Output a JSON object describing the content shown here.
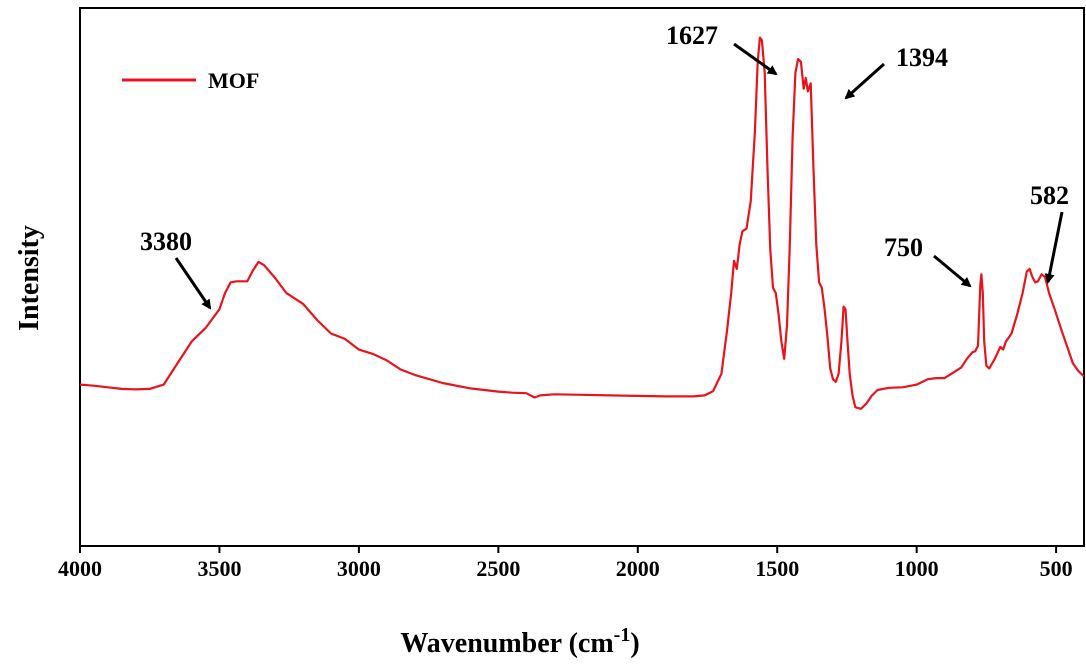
{
  "chart_data": {
    "type": "line",
    "title": "",
    "xlabel": "Wavenumber (cm",
    "xlabel_superscript": "-1",
    "xlabel_suffix": ")",
    "ylabel": "Intensity",
    "xlim": [
      4000,
      400
    ],
    "x_reversed": true,
    "x_ticks": [
      4000,
      3500,
      3000,
      2500,
      2000,
      1500,
      1000,
      500
    ],
    "y_ticks_shown": false,
    "grid": false,
    "legend_placement": "top-left",
    "series": [
      {
        "name": "MOF",
        "color": "#e8141b",
        "points": [
          [
            4000,
            0.3
          ],
          [
            3950,
            0.298
          ],
          [
            3900,
            0.295
          ],
          [
            3850,
            0.292
          ],
          [
            3800,
            0.291
          ],
          [
            3750,
            0.292
          ],
          [
            3700,
            0.3
          ],
          [
            3650,
            0.34
          ],
          [
            3600,
            0.38
          ],
          [
            3550,
            0.405
          ],
          [
            3500,
            0.44
          ],
          [
            3480,
            0.47
          ],
          [
            3460,
            0.49
          ],
          [
            3440,
            0.492
          ],
          [
            3420,
            0.492
          ],
          [
            3400,
            0.492
          ],
          [
            3380,
            0.512
          ],
          [
            3360,
            0.528
          ],
          [
            3340,
            0.522
          ],
          [
            3300,
            0.498
          ],
          [
            3260,
            0.47
          ],
          [
            3200,
            0.45
          ],
          [
            3150,
            0.42
          ],
          [
            3100,
            0.395
          ],
          [
            3050,
            0.385
          ],
          [
            3000,
            0.365
          ],
          [
            2950,
            0.357
          ],
          [
            2900,
            0.345
          ],
          [
            2850,
            0.328
          ],
          [
            2800,
            0.318
          ],
          [
            2700,
            0.303
          ],
          [
            2600,
            0.293
          ],
          [
            2500,
            0.287
          ],
          [
            2450,
            0.285
          ],
          [
            2400,
            0.284
          ],
          [
            2370,
            0.276
          ],
          [
            2350,
            0.28
          ],
          [
            2300,
            0.282
          ],
          [
            2200,
            0.281
          ],
          [
            2100,
            0.28
          ],
          [
            2000,
            0.279
          ],
          [
            1900,
            0.278
          ],
          [
            1800,
            0.278
          ],
          [
            1760,
            0.28
          ],
          [
            1730,
            0.288
          ],
          [
            1700,
            0.32
          ],
          [
            1680,
            0.4
          ],
          [
            1665,
            0.47
          ],
          [
            1655,
            0.53
          ],
          [
            1645,
            0.515
          ],
          [
            1635,
            0.56
          ],
          [
            1625,
            0.585
          ],
          [
            1610,
            0.59
          ],
          [
            1595,
            0.64
          ],
          [
            1580,
            0.77
          ],
          [
            1570,
            0.9
          ],
          [
            1562,
            0.945
          ],
          [
            1555,
            0.94
          ],
          [
            1545,
            0.88
          ],
          [
            1535,
            0.7
          ],
          [
            1525,
            0.55
          ],
          [
            1515,
            0.48
          ],
          [
            1505,
            0.47
          ],
          [
            1495,
            0.43
          ],
          [
            1485,
            0.38
          ],
          [
            1475,
            0.348
          ],
          [
            1465,
            0.41
          ],
          [
            1455,
            0.56
          ],
          [
            1445,
            0.76
          ],
          [
            1435,
            0.88
          ],
          [
            1425,
            0.905
          ],
          [
            1415,
            0.9
          ],
          [
            1405,
            0.85
          ],
          [
            1398,
            0.87
          ],
          [
            1390,
            0.845
          ],
          [
            1380,
            0.86
          ],
          [
            1370,
            0.7
          ],
          [
            1360,
            0.56
          ],
          [
            1350,
            0.49
          ],
          [
            1340,
            0.48
          ],
          [
            1330,
            0.44
          ],
          [
            1320,
            0.39
          ],
          [
            1310,
            0.33
          ],
          [
            1300,
            0.31
          ],
          [
            1290,
            0.305
          ],
          [
            1280,
            0.32
          ],
          [
            1270,
            0.38
          ],
          [
            1262,
            0.445
          ],
          [
            1255,
            0.44
          ],
          [
            1248,
            0.38
          ],
          [
            1240,
            0.32
          ],
          [
            1230,
            0.28
          ],
          [
            1220,
            0.258
          ],
          [
            1200,
            0.255
          ],
          [
            1180,
            0.265
          ],
          [
            1160,
            0.28
          ],
          [
            1140,
            0.29
          ],
          [
            1100,
            0.294
          ],
          [
            1050,
            0.295
          ],
          [
            1000,
            0.3
          ],
          [
            960,
            0.31
          ],
          [
            930,
            0.312
          ],
          [
            900,
            0.312
          ],
          [
            870,
            0.322
          ],
          [
            840,
            0.332
          ],
          [
            820,
            0.348
          ],
          [
            800,
            0.36
          ],
          [
            790,
            0.362
          ],
          [
            780,
            0.372
          ],
          [
            772,
            0.485
          ],
          [
            768,
            0.505
          ],
          [
            763,
            0.47
          ],
          [
            758,
            0.38
          ],
          [
            750,
            0.335
          ],
          [
            740,
            0.33
          ],
          [
            720,
            0.348
          ],
          [
            700,
            0.37
          ],
          [
            690,
            0.365
          ],
          [
            680,
            0.38
          ],
          [
            660,
            0.395
          ],
          [
            640,
            0.43
          ],
          [
            620,
            0.47
          ],
          [
            605,
            0.51
          ],
          [
            595,
            0.515
          ],
          [
            585,
            0.5
          ],
          [
            575,
            0.49
          ],
          [
            565,
            0.492
          ],
          [
            552,
            0.505
          ],
          [
            540,
            0.5
          ],
          [
            525,
            0.47
          ],
          [
            505,
            0.44
          ],
          [
            480,
            0.4
          ],
          [
            460,
            0.37
          ],
          [
            440,
            0.34
          ],
          [
            420,
            0.325
          ],
          [
            400,
            0.315
          ]
        ]
      }
    ],
    "annotations": [
      {
        "text": "3380",
        "x": 3380
      },
      {
        "text": "1627",
        "x": 1627
      },
      {
        "text": "1394",
        "x": 1394
      },
      {
        "text": "750",
        "x": 750
      },
      {
        "text": "582",
        "x": 582
      }
    ]
  }
}
